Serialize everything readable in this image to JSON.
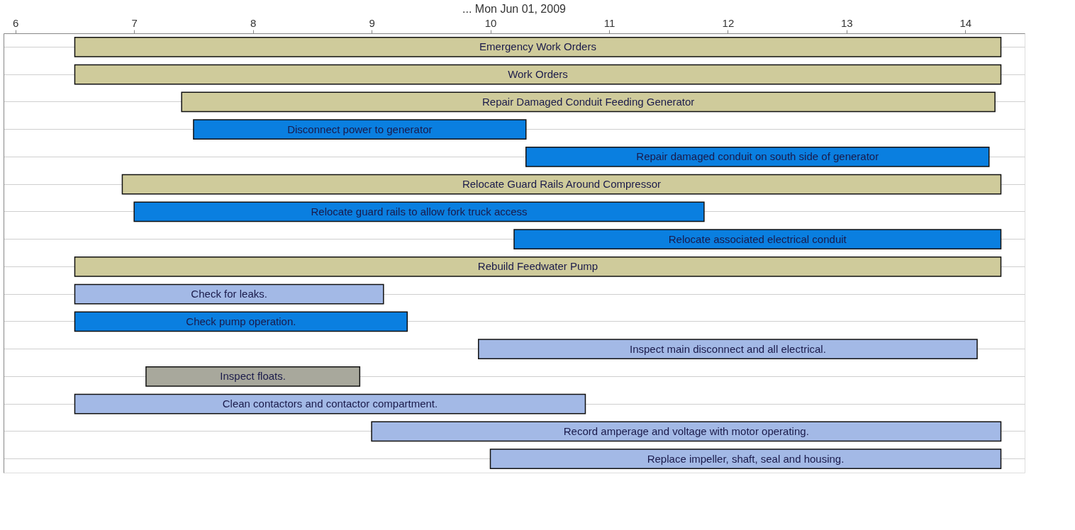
{
  "chart_data": {
    "type": "bar",
    "orientation": "horizontal",
    "title": "... Mon Jun 01, 2009",
    "categories": [
      "Emergency Work Orders",
      "Work Orders",
      "Repair Damaged Conduit Feeding Generator",
      "Disconnect power to generator",
      "Repair damaged conduit on south side of generator",
      "Relocate Guard Rails Around Compressor",
      "Relocate guard rails to allow fork truck access",
      "Relocate associated electrical conduit",
      "Rebuild Feedwater Pump",
      "Check for leaks.",
      "Check pump operation.",
      "Inspect main disconnect and all electrical.",
      "Inspect floats.",
      "Clean contactors and contactor compartment.",
      "Record amperage and voltage with motor operating.",
      "Replace impeller, shaft, seal and housing."
    ],
    "base": [
      7.0,
      7.0,
      7.9,
      8.0,
      10.8,
      7.4,
      7.5,
      10.7,
      7.0,
      7.0,
      7.0,
      10.4,
      7.6,
      7.0,
      9.5,
      10.5
    ],
    "values": [
      7.8,
      7.8,
      6.85,
      2.8,
      3.9,
      7.4,
      4.8,
      4.1,
      7.8,
      2.6,
      2.8,
      4.2,
      1.8,
      4.3,
      5.3,
      4.3
    ],
    "colors": [
      "#cfcb9b",
      "#cfcb9b",
      "#cfcb9b",
      "#0a7fe0",
      "#0a7fe0",
      "#cfcb9b",
      "#0a7fe0",
      "#0a7fe0",
      "#cfcb9b",
      "#a3b9e6",
      "#0a7fe0",
      "#a3b9e6",
      "#a8a89c",
      "#a3b9e6",
      "#a3b9e6",
      "#a3b9e6"
    ],
    "xlim": [
      6.4,
      15.0
    ],
    "xticks": [
      {
        "value": 6.5,
        "label": "6"
      },
      {
        "value": 7.5,
        "label": "7"
      },
      {
        "value": 8.5,
        "label": "8"
      },
      {
        "value": 9.5,
        "label": "9"
      },
      {
        "value": 10.5,
        "label": "10"
      },
      {
        "value": 11.5,
        "label": "11"
      },
      {
        "value": 12.5,
        "label": "12"
      },
      {
        "value": 13.5,
        "label": "13"
      },
      {
        "value": 14.5,
        "label": "14"
      }
    ],
    "tick_labels": "x",
    "grid": "y"
  }
}
